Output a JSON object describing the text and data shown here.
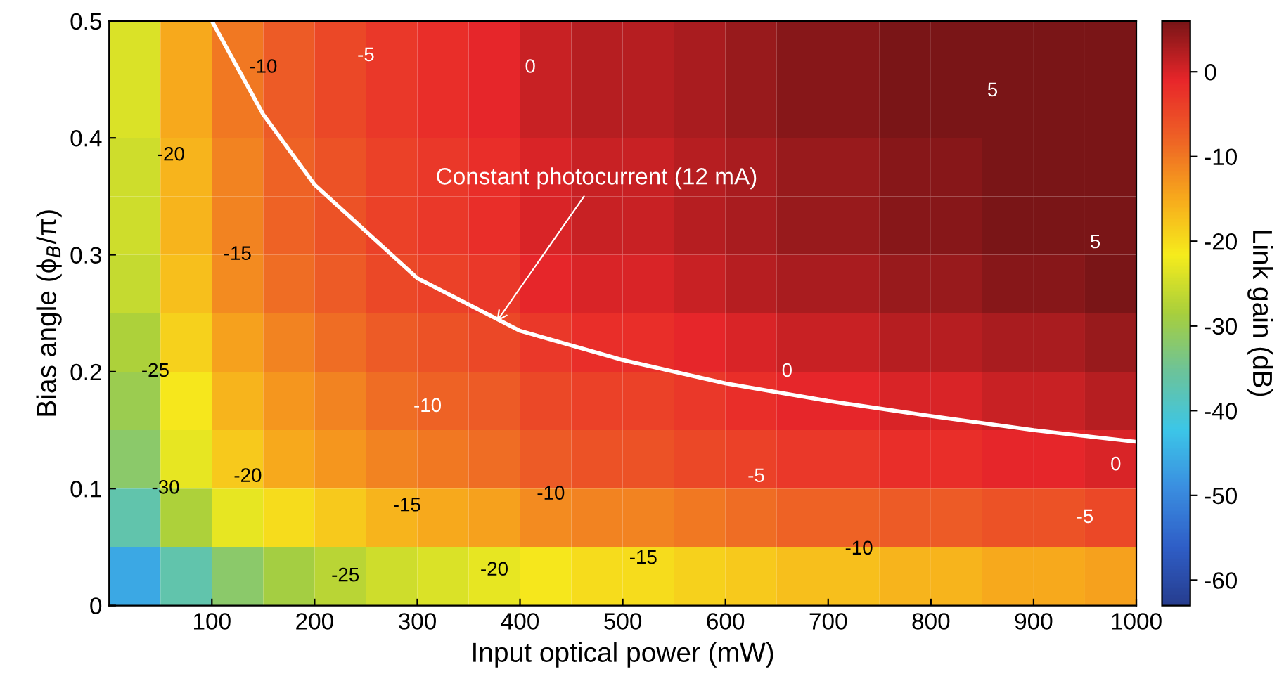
{
  "chart_data": {
    "type": "heatmap",
    "xlabel": "Input optical power (mW)",
    "ylabel": "Bias angle (ϕ$_{B}$/π)",
    "clabel": "Link gain (dB)",
    "x": [
      25,
      75,
      125,
      175,
      225,
      275,
      325,
      375,
      425,
      475,
      525,
      575,
      625,
      675,
      725,
      775,
      825,
      875,
      925,
      975
    ],
    "y": [
      0.475,
      0.425,
      0.375,
      0.325,
      0.275,
      0.225,
      0.175,
      0.125,
      0.075,
      0.025
    ],
    "cells": [
      [
        -24,
        -15,
        -10,
        -7,
        -5,
        -3,
        -2,
        -1,
        1,
        2,
        2,
        3,
        4,
        5,
        5,
        6,
        6,
        7,
        7,
        8
      ],
      [
        -24,
        -15,
        -10,
        -7,
        -5,
        -3,
        -2,
        -1,
        1,
        2,
        2,
        3,
        4,
        5,
        5,
        6,
        6,
        7,
        7,
        8
      ],
      [
        -25,
        -16,
        -11,
        -8,
        -6,
        -4,
        -3,
        -2,
        0,
        1,
        1,
        2,
        3,
        4,
        4,
        5,
        5,
        6,
        6,
        7
      ],
      [
        -25,
        -16,
        -11,
        -8,
        -6,
        -4,
        -3,
        -2,
        0,
        1,
        1,
        2,
        3,
        4,
        4,
        5,
        5,
        6,
        6,
        7
      ],
      [
        -26,
        -17,
        -12,
        -9,
        -7,
        -5,
        -4,
        -3,
        -1,
        0,
        0,
        1,
        2,
        3,
        3,
        4,
        4,
        5,
        5,
        6
      ],
      [
        -28,
        -19,
        -14,
        -11,
        -9,
        -7,
        -6,
        -5,
        -3,
        -2,
        -2,
        -1,
        0,
        1,
        1,
        2,
        2,
        3,
        3,
        4
      ],
      [
        -30,
        -21,
        -16,
        -13,
        -11,
        -9,
        -8,
        -7,
        -5,
        -4,
        -4,
        -3,
        -2,
        -1,
        -1,
        0,
        0,
        1,
        1,
        2
      ],
      [
        -32,
        -23,
        -18,
        -15,
        -13,
        -11,
        -10,
        -9,
        -7,
        -6,
        -6,
        -5,
        -4,
        -3,
        -3,
        -2,
        -2,
        -1,
        -1,
        0
      ],
      [
        -37,
        -28,
        -23,
        -20,
        -18,
        -16,
        -15,
        -14,
        -12,
        -11,
        -11,
        -10,
        -9,
        -8,
        -8,
        -7,
        -7,
        -6,
        -6,
        -5
      ],
      [
        -46,
        -37,
        -32,
        -29,
        -27,
        -25,
        -24,
        -23,
        -21,
        -20,
        -20,
        -19,
        -18,
        -17,
        -17,
        -16,
        -16,
        -15,
        -15,
        -14
      ]
    ],
    "colors": [
      "#263d8f",
      "#2f5fc8",
      "#3a8ee0",
      "#3cc6e8",
      "#6cc39a",
      "#a8cf3c",
      "#f6ec1c",
      "#f7a81c",
      "#ee6225",
      "#e8262a",
      "#7a1517"
    ],
    "clim": [
      -63,
      6
    ],
    "cticks": [
      -60,
      -50,
      -40,
      -30,
      -20,
      -10,
      0
    ],
    "xlim": [
      0,
      1000
    ],
    "xticks": [
      100,
      200,
      300,
      400,
      500,
      600,
      700,
      800,
      900,
      1000
    ],
    "ylim": [
      0,
      0.5
    ],
    "yticks": [
      {
        "value": 0,
        "label": "0"
      },
      0.1,
      0.2,
      0.3,
      0.4,
      0.5
    ],
    "series": [
      {
        "type": "line",
        "color": "#ffffff",
        "x": [
          100,
          150,
          200,
          250,
          300,
          400,
          500,
          600,
          700,
          800,
          900,
          1000
        ],
        "values": [
          0.5,
          0.42,
          0.36,
          0.32,
          0.28,
          0.235,
          0.21,
          0.19,
          0.175,
          0.162,
          0.15,
          0.14
        ]
      }
    ],
    "annotations": [
      {
        "text": "Constant photocurrent (12 mA)",
        "x": 375,
        "y": 0.24
      },
      "-10",
      "-5",
      "0",
      "5",
      "5",
      "0",
      "0",
      "-20",
      "-15",
      "-10",
      "-5",
      "-5",
      "-25",
      "-20",
      "-10",
      "-15",
      "-30",
      "-10",
      "-15",
      "-20",
      "-25"
    ]
  }
}
